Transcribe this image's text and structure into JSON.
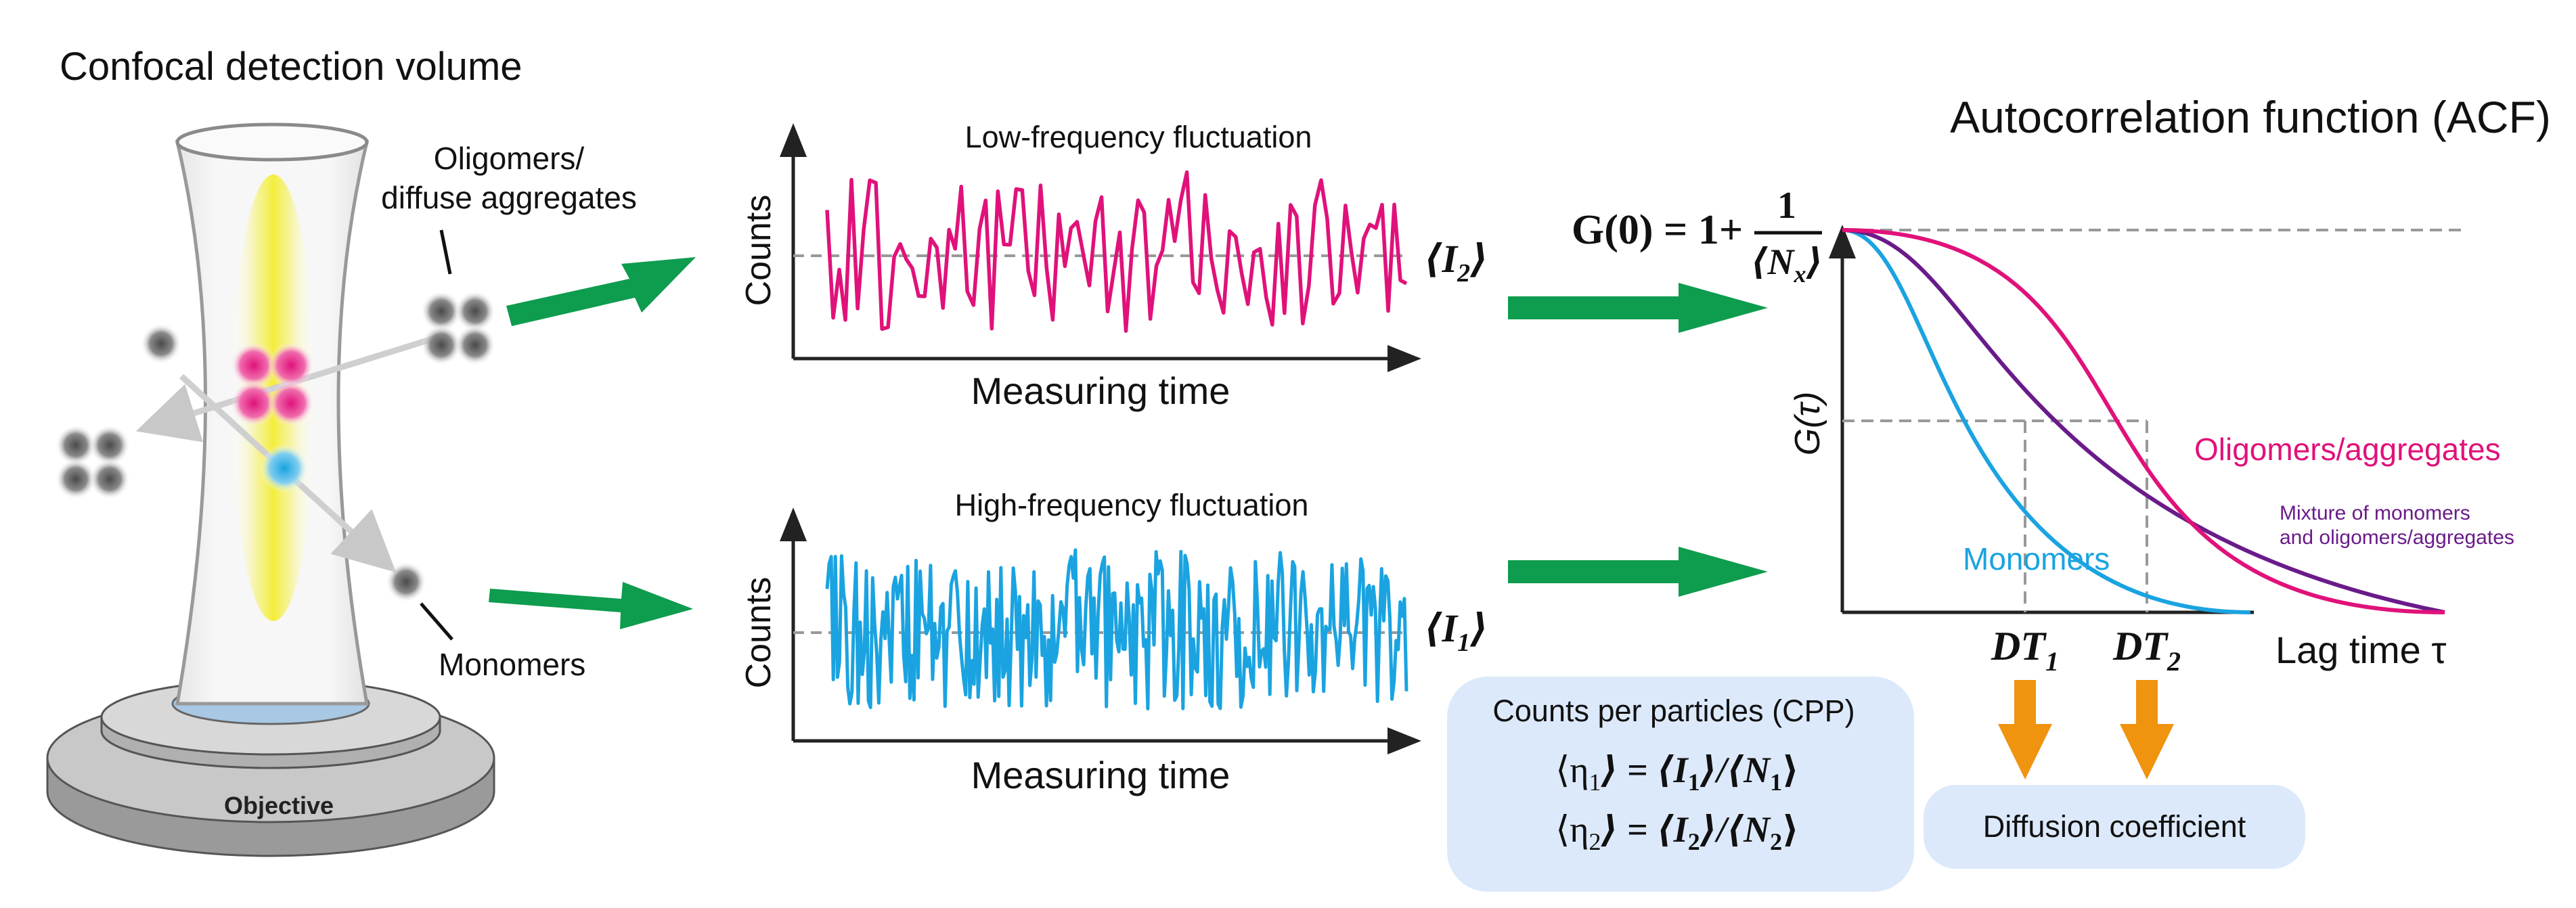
{
  "colors": {
    "green_arrow": "#0e9c4e",
    "magenta": "#e0127a",
    "cyan": "#1aa3e0",
    "purple": "#6a1b8a",
    "orange": "#f0930f",
    "gray_dash": "#999999",
    "box_fill": "#dce9fb",
    "axis": "#222222"
  },
  "left_panel": {
    "title": "Confocal detection volume",
    "oligomers_label_line1": "Oligomers/",
    "oligomers_label_line2": "diffuse aggregates",
    "monomers_label": "Monomers",
    "objective_label": "Objective"
  },
  "traces": {
    "low": {
      "title": "Low-frequency fluctuation",
      "ylabel": "Counts",
      "xlabel": "Measuring time",
      "mean_base": "⟨I",
      "mean_sub": "2",
      "mean_end": "⟩"
    },
    "high": {
      "title": "High-frequency fluctuation",
      "ylabel": "Counts",
      "xlabel": "Measuring time",
      "mean_base": "⟨I",
      "mean_sub": "1",
      "mean_end": "⟩"
    }
  },
  "acf": {
    "title": "Autocorrelation function (ACF)",
    "formula_lhs": "G(0) = 1+",
    "formula_num": "1",
    "formula_den_base": "⟨N",
    "formula_den_sub": "x",
    "formula_den_end": "⟩",
    "ylabel": "G(τ)",
    "xlabel": "Lag time τ",
    "curve_oligomers": "Oligomers/aggregates",
    "curve_mixture_line1": "Mixture of monomers",
    "curve_mixture_line2": "and oligomers/aggregates",
    "curve_monomers": "Monomers",
    "dt1_base": "DT",
    "dt1_sub": "1",
    "dt2_base": "DT",
    "dt2_sub": "2"
  },
  "cpp_box": {
    "title": "Counts per particles (CPP)",
    "eq1": {
      "lhs": "⟨η",
      "lhs_sub": "1",
      "mid": "⟩ = ⟨I",
      "mid_sub": "1",
      "rhs": "⟩/⟨N",
      "rhs_sub": "1",
      "end": "⟩"
    },
    "eq2": {
      "lhs": "⟨η",
      "lhs_sub": "2",
      "mid": "⟩ = ⟨I",
      "mid_sub": "2",
      "rhs": "⟩/⟨N",
      "rhs_sub": "2",
      "end": "⟩"
    }
  },
  "diffusion_box": {
    "label": "Diffusion coefficient"
  }
}
